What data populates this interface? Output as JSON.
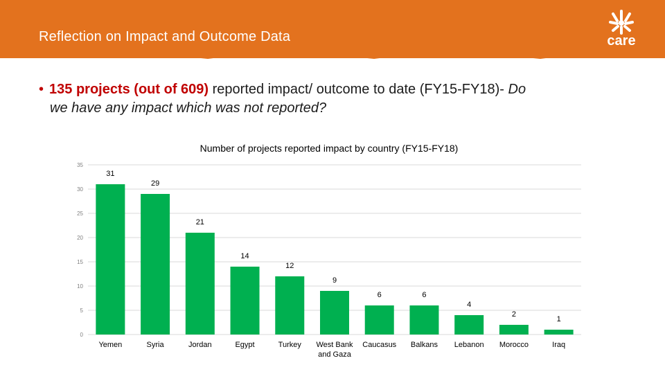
{
  "header": {
    "title": "Reflection on Impact and Outcome Data",
    "logo_text": "care"
  },
  "bullet": {
    "highlight": "135 projects (out of 609)",
    "text": " reported impact/ outcome to date (FY15-FY18)- ",
    "question_line1": "Do",
    "question_line2": "we have any impact which was not reported?"
  },
  "colors": {
    "banner": "#e3721e",
    "bar": "#00b050",
    "highlight": "#c00000"
  },
  "chart_data": {
    "type": "bar",
    "title": "Number of projects reported impact by country (FY15-FY18)",
    "categories": [
      "Yemen",
      "Syria",
      "Jordan",
      "Egypt",
      "Turkey",
      "West Bank and Gaza",
      "Caucasus",
      "Balkans",
      "Lebanon",
      "Morocco",
      "Iraq"
    ],
    "category_lines": [
      [
        "Yemen"
      ],
      [
        "Syria"
      ],
      [
        "Jordan"
      ],
      [
        "Egypt"
      ],
      [
        "Turkey"
      ],
      [
        "West Bank",
        "and Gaza"
      ],
      [
        "Caucasus"
      ],
      [
        "Balkans"
      ],
      [
        "Lebanon"
      ],
      [
        "Morocco"
      ],
      [
        "Iraq"
      ]
    ],
    "values": [
      31,
      29,
      21,
      14,
      12,
      9,
      6,
      6,
      4,
      2,
      1
    ],
    "yticks": [
      0,
      5,
      10,
      15,
      20,
      25,
      30,
      35
    ],
    "ylim": [
      0,
      35
    ],
    "grid": true,
    "legend": "none",
    "xlabel": "",
    "ylabel": ""
  }
}
